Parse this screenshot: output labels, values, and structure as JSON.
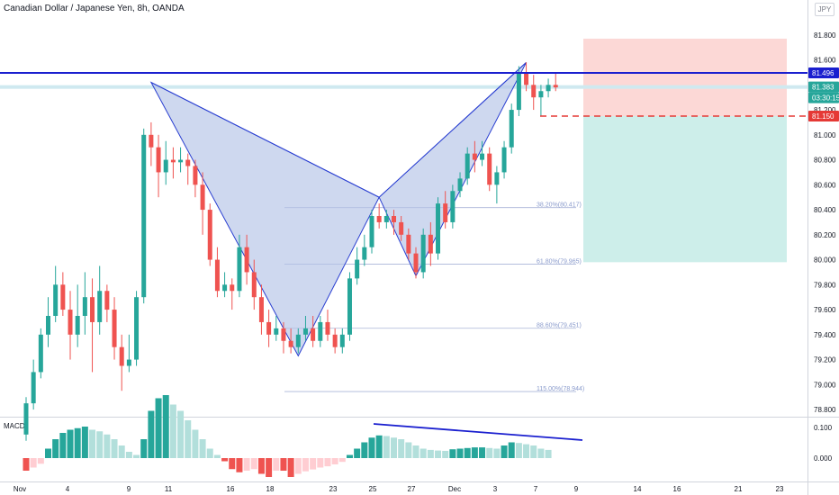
{
  "header": {
    "title": "Canadian Dollar / Japanese Yen, 8h, OANDA",
    "currency_button": "JPY"
  },
  "indicator": {
    "label": "MACD",
    "scale_labels": [
      "0.100",
      "0.000"
    ]
  },
  "colors": {
    "up": "#26a69a",
    "down": "#ef5350",
    "pattern_fill": "#b4c3e6",
    "pattern_line": "#2a3fd1",
    "resistance": "#1a1fcf",
    "stop": "#e53935",
    "target_zone": "#cdeeea",
    "risk_zone": "#fcd8d6"
  },
  "chart_data": {
    "type": "candlestick",
    "title": "Canadian Dollar / Japanese Yen, 8h, OANDA",
    "ylim": [
      78.75,
      81.95
    ],
    "y_ticks": [
      "81.800",
      "81.600",
      "81.400",
      "81.200",
      "81.000",
      "80.800",
      "80.600",
      "80.400",
      "80.200",
      "80.000",
      "79.800",
      "79.600",
      "79.400",
      "79.200",
      "79.000",
      "78.800"
    ],
    "x_ticks": [
      "Nov",
      "4",
      "9",
      "11",
      "16",
      "18",
      "23",
      "25",
      "27",
      "Dec",
      "3",
      "7",
      "9",
      "14",
      "16",
      "21",
      "23"
    ],
    "price_tags": [
      {
        "value": "81.496",
        "color": "#1a1fcf"
      },
      {
        "value": "81.383",
        "color": "#26a69a"
      },
      {
        "value": "03:30:15",
        "color": "#26a69a"
      },
      {
        "value": "81.150",
        "color": "#e53935"
      }
    ],
    "fib_levels": [
      {
        "label": "38.20%(80.417)",
        "value": 80.417
      },
      {
        "label": "61.80%(79.965)",
        "value": 79.965
      },
      {
        "label": "88.60%(79.451)",
        "value": 79.451
      },
      {
        "label": "115.00%(78.944)",
        "value": 78.944
      }
    ],
    "levels": {
      "resistance": 81.496,
      "current": 81.383,
      "stop": 81.15
    },
    "zones": {
      "risk": [
        81.15,
        81.77
      ],
      "target": [
        79.98,
        81.15
      ]
    },
    "pattern_points": [
      {
        "i": 17,
        "price": 81.42
      },
      {
        "i": 37,
        "price": 79.23
      },
      {
        "i": 48,
        "price": 80.5
      },
      {
        "i": 53,
        "price": 79.87
      },
      {
        "i": 68,
        "price": 81.58
      }
    ],
    "candles": [
      [
        78.6,
        78.85,
        78.55,
        78.9
      ],
      [
        78.85,
        79.1,
        78.8,
        79.2
      ],
      [
        79.1,
        79.4,
        79.05,
        79.45
      ],
      [
        79.4,
        79.55,
        79.3,
        79.7
      ],
      [
        79.55,
        79.8,
        79.5,
        79.95
      ],
      [
        79.8,
        79.6,
        79.55,
        79.9
      ],
      [
        79.6,
        79.4,
        79.2,
        79.75
      ],
      [
        79.4,
        79.55,
        79.3,
        79.8
      ],
      [
        79.55,
        79.7,
        79.4,
        79.9
      ],
      [
        79.7,
        79.5,
        79.1,
        79.85
      ],
      [
        79.5,
        79.75,
        79.4,
        79.95
      ],
      [
        79.75,
        79.6,
        79.5,
        79.8
      ],
      [
        79.6,
        79.3,
        79.2,
        79.7
      ],
      [
        79.3,
        79.15,
        78.95,
        79.4
      ],
      [
        79.15,
        79.2,
        79.1,
        79.4
      ],
      [
        79.2,
        79.7,
        79.15,
        79.75
      ],
      [
        79.7,
        81.0,
        79.65,
        81.05
      ],
      [
        81.0,
        80.9,
        80.75,
        81.1
      ],
      [
        80.9,
        80.7,
        80.5,
        81.0
      ],
      [
        80.7,
        80.8,
        80.6,
        80.95
      ],
      [
        80.8,
        80.78,
        80.65,
        80.9
      ],
      [
        80.78,
        80.8,
        80.7,
        80.9
      ],
      [
        80.8,
        80.75,
        80.6,
        80.85
      ],
      [
        80.75,
        80.6,
        80.5,
        80.8
      ],
      [
        80.6,
        80.4,
        80.2,
        80.7
      ],
      [
        80.4,
        80.0,
        79.95,
        80.45
      ],
      [
        80.0,
        79.75,
        79.7,
        80.1
      ],
      [
        79.75,
        79.8,
        79.7,
        79.9
      ],
      [
        79.8,
        79.75,
        79.6,
        79.85
      ],
      [
        79.75,
        80.1,
        79.7,
        80.2
      ],
      [
        80.1,
        79.9,
        79.8,
        80.2
      ],
      [
        79.9,
        79.7,
        79.6,
        80.0
      ],
      [
        79.7,
        79.5,
        79.4,
        79.8
      ],
      [
        79.5,
        79.4,
        79.3,
        79.6
      ],
      [
        79.4,
        79.45,
        79.35,
        79.55
      ],
      [
        79.45,
        79.35,
        79.25,
        79.5
      ],
      [
        79.35,
        79.3,
        79.25,
        79.45
      ],
      [
        79.3,
        79.4,
        79.25,
        79.45
      ],
      [
        79.4,
        79.45,
        79.35,
        79.55
      ],
      [
        79.45,
        79.35,
        79.3,
        79.55
      ],
      [
        79.35,
        79.5,
        79.3,
        79.55
      ],
      [
        79.5,
        79.4,
        79.35,
        79.6
      ],
      [
        79.4,
        79.3,
        79.25,
        79.45
      ],
      [
        79.3,
        79.4,
        79.25,
        79.45
      ],
      [
        79.4,
        79.85,
        79.35,
        79.9
      ],
      [
        79.85,
        80.0,
        79.8,
        80.1
      ],
      [
        80.0,
        80.1,
        79.95,
        80.2
      ],
      [
        80.1,
        80.35,
        80.05,
        80.4
      ],
      [
        80.35,
        80.3,
        80.25,
        80.45
      ],
      [
        80.3,
        80.35,
        80.25,
        80.4
      ],
      [
        80.35,
        80.3,
        80.2,
        80.4
      ],
      [
        80.3,
        80.2,
        80.15,
        80.35
      ],
      [
        80.2,
        80.05,
        80.0,
        80.25
      ],
      [
        80.05,
        79.9,
        79.85,
        80.1
      ],
      [
        79.9,
        80.2,
        79.85,
        80.25
      ],
      [
        80.2,
        80.05,
        79.95,
        80.3
      ],
      [
        80.05,
        80.45,
        80.0,
        80.5
      ],
      [
        80.45,
        80.3,
        80.25,
        80.55
      ],
      [
        80.3,
        80.55,
        80.25,
        80.6
      ],
      [
        80.55,
        80.65,
        80.5,
        80.7
      ],
      [
        80.65,
        80.85,
        80.6,
        80.9
      ],
      [
        80.85,
        80.8,
        80.7,
        80.95
      ],
      [
        80.8,
        80.85,
        80.75,
        80.95
      ],
      [
        80.85,
        80.6,
        80.55,
        80.9
      ],
      [
        80.6,
        80.7,
        80.45,
        80.75
      ],
      [
        80.7,
        80.9,
        80.65,
        80.95
      ],
      [
        80.9,
        81.2,
        80.85,
        81.25
      ],
      [
        81.2,
        81.5,
        81.15,
        81.55
      ],
      [
        81.5,
        81.4,
        81.35,
        81.58
      ],
      [
        81.4,
        81.3,
        81.2,
        81.48
      ],
      [
        81.3,
        81.35,
        81.15,
        81.4
      ],
      [
        81.35,
        81.4,
        81.3,
        81.45
      ],
      [
        81.4,
        81.38,
        81.35,
        81.5
      ]
    ],
    "macd_hist": [
      -0.04,
      -0.03,
      -0.018,
      0.03,
      0.06,
      0.08,
      0.09,
      0.095,
      0.1,
      0.09,
      0.085,
      0.075,
      0.06,
      0.04,
      0.02,
      0.01,
      0.06,
      0.15,
      0.19,
      0.2,
      0.17,
      0.15,
      0.12,
      0.09,
      0.06,
      0.03,
      0.01,
      -0.01,
      -0.035,
      -0.045,
      -0.04,
      -0.035,
      -0.05,
      -0.06,
      -0.04,
      -0.04,
      -0.06,
      -0.05,
      -0.042,
      -0.036,
      -0.03,
      -0.026,
      -0.02,
      -0.012,
      0.01,
      0.03,
      0.05,
      0.065,
      0.072,
      0.07,
      0.065,
      0.06,
      0.05,
      0.04,
      0.03,
      0.026,
      0.024,
      0.023,
      0.028,
      0.03,
      0.032,
      0.034,
      0.034,
      0.032,
      0.03,
      0.04,
      0.05,
      0.048,
      0.044,
      0.04,
      0.03,
      0.026
    ]
  }
}
